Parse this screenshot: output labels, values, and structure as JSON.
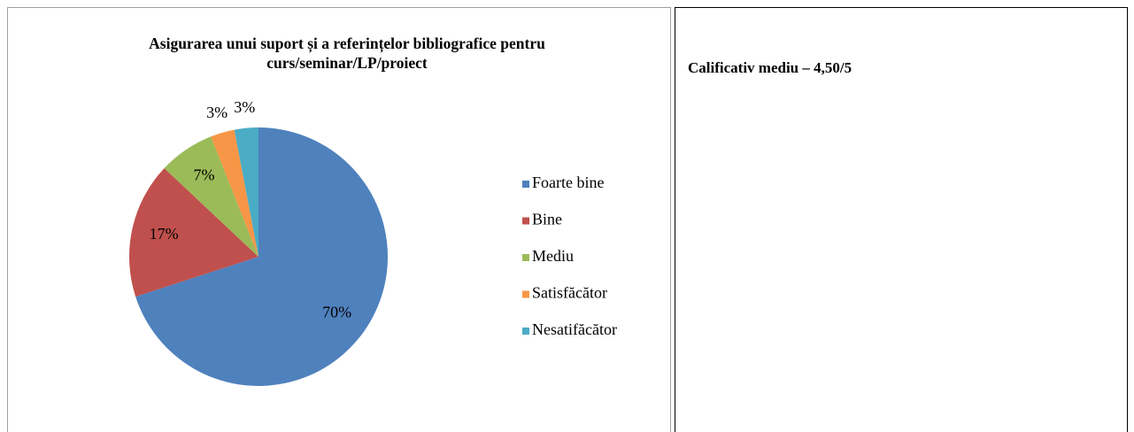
{
  "chart_data": {
    "type": "pie",
    "title": "Asigurarea unui suport și a referințelor bibliografice pentru curs/seminar/LP/proiect",
    "categories": [
      "Foarte bine",
      "Bine",
      "Mediu",
      "Satisfăcător",
      "Nesatifăcător"
    ],
    "values": [
      70,
      17,
      7,
      3,
      3
    ],
    "value_labels": [
      "70%",
      "17%",
      "7%",
      "3%",
      "3%"
    ],
    "colors": [
      "#4f81bd",
      "#c0504d",
      "#9bbb59",
      "#f79646",
      "#4bacc6"
    ],
    "legend": "right"
  },
  "side_text": "Calificativ mediu – 4,50/5"
}
